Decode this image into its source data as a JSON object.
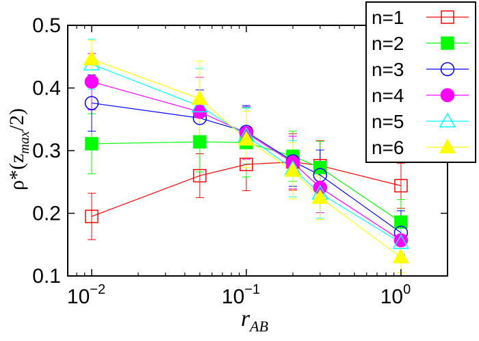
{
  "chart_data": {
    "type": "line",
    "xscale": "log",
    "xlim": [
      0.007,
      2.0
    ],
    "ylim": [
      0.1,
      0.5
    ],
    "x": [
      0.01,
      0.05,
      0.1,
      0.2,
      0.3,
      1.0
    ],
    "xlabel": {
      "base": "r",
      "sub": "AB"
    },
    "ylabel": {
      "pre": "ρ*(z",
      "sub": "max",
      "post": "/2)"
    },
    "x_ticks": [
      {
        "value": 0.01,
        "base": "10",
        "exp": "−2"
      },
      {
        "value": 0.1,
        "base": "10",
        "exp": "−1"
      },
      {
        "value": 1.0,
        "base": "10",
        "exp": "0"
      }
    ],
    "y_ticks": [
      {
        "value": 0.1,
        "label": "0.1"
      },
      {
        "value": 0.2,
        "label": "0.2"
      },
      {
        "value": 0.3,
        "label": "0.3"
      },
      {
        "value": 0.4,
        "label": "0.4"
      },
      {
        "value": 0.5,
        "label": "0.5"
      }
    ],
    "legend_position": "top-right",
    "series": [
      {
        "name": "n=1",
        "color": "#ff0000",
        "marker": "square-open",
        "values": [
          0.195,
          0.26,
          0.278,
          0.282,
          0.276,
          0.244
        ],
        "errors": [
          0.037,
          0.035,
          0.042,
          0.045,
          0.04,
          0.036
        ]
      },
      {
        "name": "n=2",
        "color": "#00ff00",
        "marker": "square-filled",
        "values": [
          0.311,
          0.314,
          0.313,
          0.291,
          0.273,
          0.186
        ],
        "errors": [
          0.048,
          0.048,
          0.055,
          0.04,
          0.042,
          0.036
        ]
      },
      {
        "name": "n=3",
        "color": "#0000ff",
        "marker": "circle-open",
        "values": [
          0.376,
          0.352,
          0.33,
          0.283,
          0.261,
          0.169
        ],
        "errors": [
          0.045,
          0.045,
          0.042,
          0.04,
          0.04,
          0.035
        ]
      },
      {
        "name": "n=4",
        "color": "#ff00ff",
        "marker": "circle-filled",
        "values": [
          0.41,
          0.362,
          0.328,
          0.281,
          0.241,
          0.157
        ],
        "errors": [
          0.045,
          0.055,
          0.042,
          0.042,
          0.04,
          0.033
        ]
      },
      {
        "name": "n=5",
        "color": "#00ffff",
        "marker": "triangle-open",
        "values": [
          0.438,
          0.371,
          0.324,
          0.271,
          0.232,
          0.153
        ],
        "errors": [
          0.04,
          0.06,
          0.045,
          0.045,
          0.04,
          0.03
        ]
      },
      {
        "name": "n=6",
        "color": "#ffff00",
        "marker": "triangle-filled",
        "values": [
          0.446,
          0.383,
          0.318,
          0.268,
          0.225,
          0.13
        ],
        "errors": [
          0.03,
          0.06,
          0.045,
          0.045,
          0.035,
          0.025
        ]
      }
    ]
  }
}
